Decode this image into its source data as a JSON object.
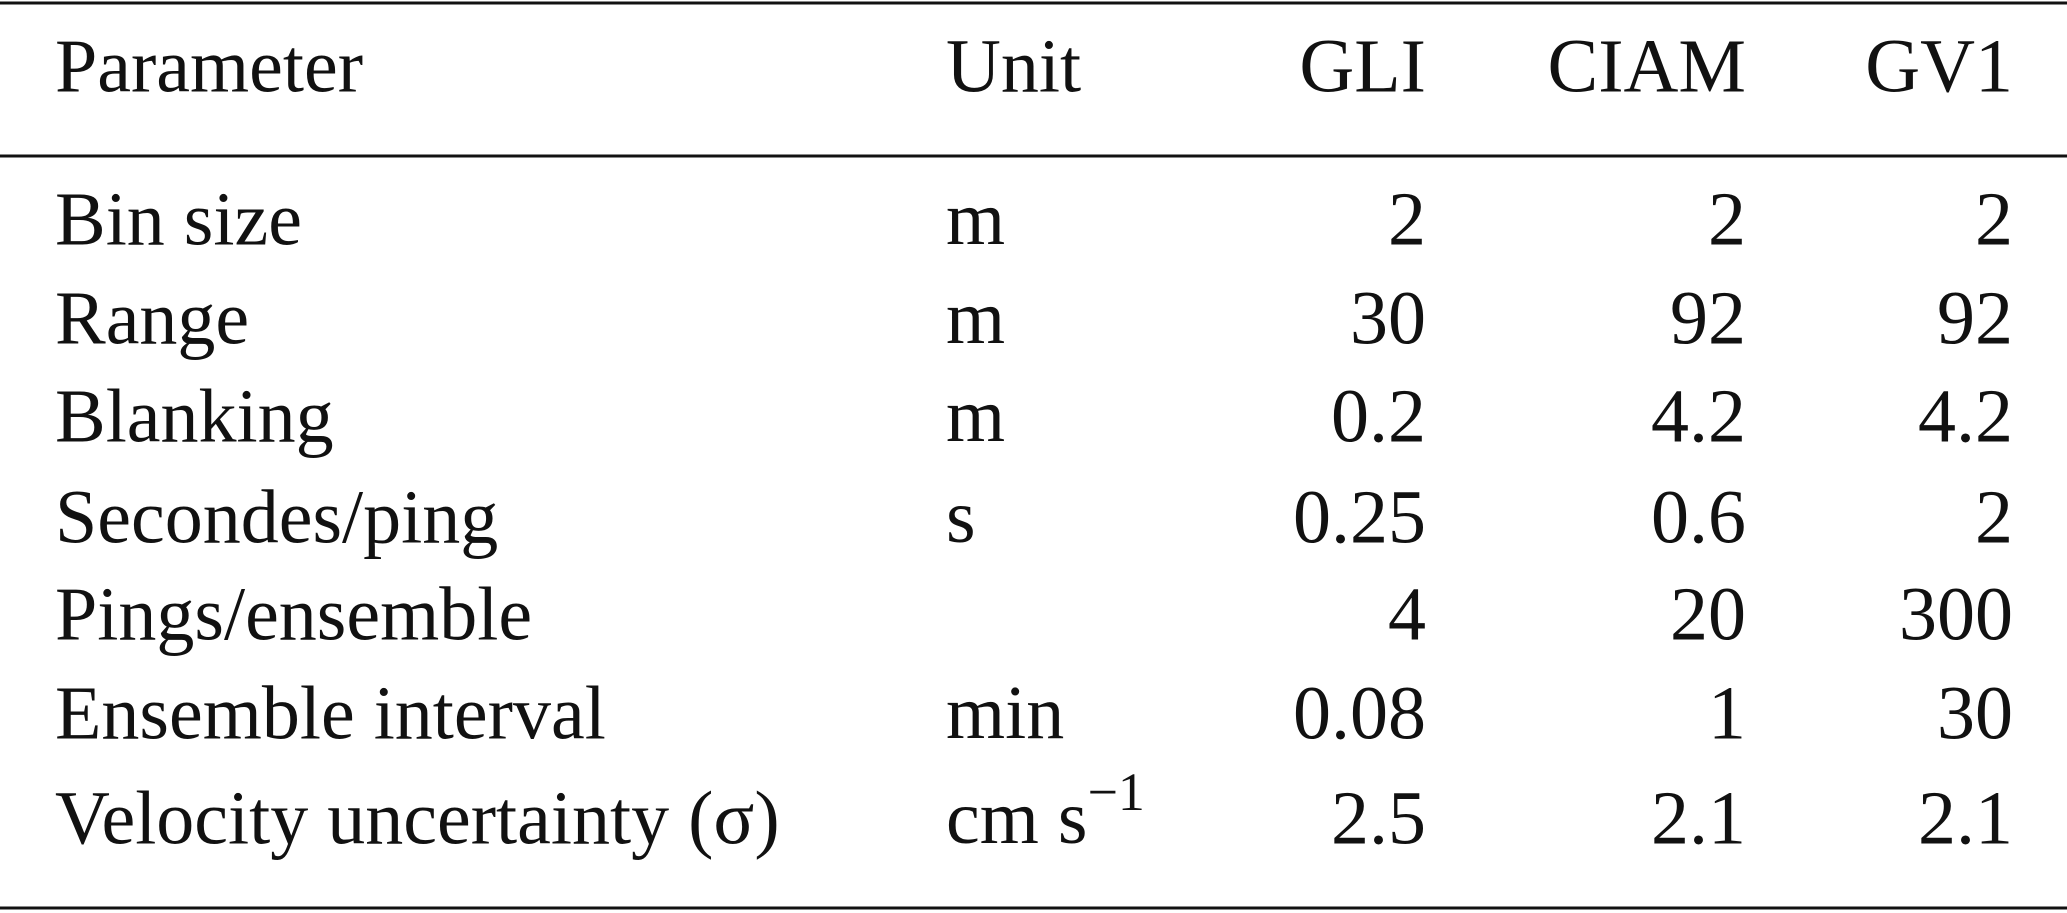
{
  "table": {
    "header": [
      "Parameter",
      "Unit",
      "GLI",
      "CIAM",
      "GV1"
    ],
    "rows": [
      {
        "parameter": "Bin size",
        "unit": "m",
        "values": [
          "2",
          "2",
          "2"
        ]
      },
      {
        "parameter": "Range",
        "unit": "m",
        "values": [
          "30",
          "92",
          "92"
        ]
      },
      {
        "parameter": "Blanking",
        "unit": "m",
        "values": [
          "0.2",
          "4.2",
          "4.2"
        ]
      },
      {
        "parameter": "Secondes/ping",
        "unit": "s",
        "values": [
          "0.25",
          "0.6",
          "2"
        ]
      },
      {
        "parameter": "Pings/ensemble",
        "values": [
          "4",
          "20",
          "300"
        ]
      },
      {
        "parameter": "Ensemble interval",
        "unit": "min",
        "values": [
          "0.08",
          "1",
          "30"
        ]
      },
      {
        "parameter": "Velocity uncertainty (σ)",
        "unit": "cm s",
        "unit_sup": "−1",
        "values": [
          "2.5",
          "2.1",
          "2.1"
        ]
      }
    ]
  }
}
